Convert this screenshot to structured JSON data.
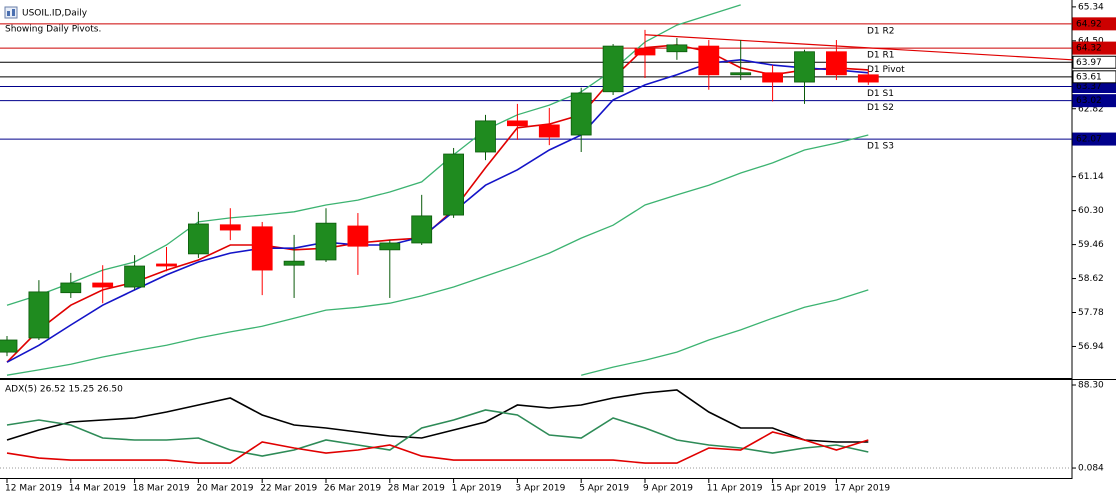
{
  "header": {
    "symbol": "USOIL.ID,Daily",
    "note": "Showing Daily Pivots."
  },
  "chart_data": [
    {
      "type": "candlestick",
      "categories": [
        "12 Mar 2019",
        null,
        "14 Mar 2019",
        null,
        "18 Mar 2019",
        null,
        "20 Mar 2019",
        null,
        "22 Mar 2019",
        null,
        "26 Mar 2019",
        null,
        "28 Mar 2019",
        null,
        "1 Apr 2019",
        null,
        "3 Apr 2019",
        null,
        "5 Apr 2019",
        null,
        "9 Apr 2019",
        null,
        "11 Apr 2019",
        null,
        "15 Apr 2019",
        null,
        "17 Apr 2019",
        null
      ],
      "open": [
        56.8,
        57.15,
        58.27,
        58.51,
        58.41,
        58.98,
        59.23,
        59.95,
        59.9,
        58.95,
        59.08,
        59.92,
        59.33,
        59.5,
        60.19,
        61.75,
        62.52,
        62.42,
        62.17,
        63.24,
        64.3,
        64.23,
        64.37,
        63.66,
        63.71,
        63.48,
        64.23,
        63.66
      ],
      "high": [
        57.2,
        58.58,
        58.76,
        58.95,
        59.2,
        59.4,
        60.27,
        60.36,
        60.02,
        59.7,
        60.36,
        60.24,
        59.57,
        60.69,
        61.85,
        62.67,
        62.94,
        62.84,
        63.34,
        64.42,
        64.77,
        64.57,
        64.52,
        64.52,
        63.9,
        64.28,
        64.52,
        63.78
      ],
      "low": [
        56.7,
        57.1,
        58.14,
        58.01,
        58.34,
        58.8,
        59.13,
        59.57,
        58.21,
        58.14,
        59.03,
        58.71,
        58.14,
        59.45,
        60.12,
        61.55,
        62.05,
        61.92,
        61.75,
        63.16,
        63.58,
        64.03,
        63.29,
        63.53,
        63.0,
        62.94,
        63.53,
        63.41
      ],
      "close": [
        57.1,
        58.29,
        58.51,
        58.41,
        58.93,
        58.93,
        59.97,
        59.82,
        58.83,
        59.05,
        59.99,
        59.42,
        59.5,
        60.17,
        61.7,
        62.52,
        62.4,
        62.12,
        63.21,
        64.37,
        64.15,
        64.4,
        63.66,
        63.71,
        63.48,
        64.23,
        63.66,
        63.48
      ],
      "up_color": "#1f8b1f",
      "down_color": "#ff0000",
      "series": [
        {
          "color": "#e00000",
          "values": [
            56.55,
            57.35,
            57.96,
            58.34,
            58.53,
            58.83,
            59.08,
            59.45,
            59.45,
            59.33,
            59.37,
            59.5,
            59.57,
            59.62,
            60.32,
            61.36,
            62.35,
            62.44,
            62.67,
            63.58,
            64.33,
            64.4,
            64.23,
            63.83,
            63.66,
            63.78,
            63.83,
            63.78
          ]
        },
        {
          "color": "#1414c8",
          "values": [
            56.55,
            56.97,
            57.47,
            57.96,
            58.34,
            58.71,
            59.03,
            59.25,
            59.37,
            59.37,
            59.52,
            59.45,
            59.45,
            59.65,
            60.27,
            60.93,
            61.31,
            61.8,
            62.17,
            63.04,
            63.41,
            63.66,
            63.95,
            64.03,
            63.9,
            63.83,
            63.78,
            63.71
          ]
        },
        {
          "color": "#3cb371",
          "values": [
            57.96,
            58.21,
            58.51,
            58.83,
            59.03,
            59.45,
            60.02,
            60.12,
            60.19,
            60.27,
            60.44,
            60.56,
            60.76,
            61.01,
            61.68,
            62.3,
            62.67,
            62.91,
            63.24,
            63.78,
            64.47,
            64.89,
            65.14,
            65.39,
            null,
            null,
            null,
            null
          ]
        },
        {
          "color": "#3cb371",
          "values": [
            56.23,
            56.36,
            56.5,
            56.68,
            56.83,
            56.97,
            57.15,
            57.3,
            57.44,
            57.64,
            57.84,
            57.91,
            58.01,
            58.19,
            58.41,
            58.68,
            58.95,
            59.25,
            59.62,
            59.94,
            60.44,
            60.69,
            60.93,
            61.23,
            61.48,
            61.8,
            61.97,
            62.17
          ]
        },
        {
          "color": "#3cb371",
          "values": [
            null,
            null,
            null,
            null,
            null,
            null,
            null,
            null,
            null,
            null,
            null,
            null,
            null,
            null,
            null,
            null,
            null,
            null,
            56.23,
            56.43,
            56.6,
            56.8,
            57.1,
            57.35,
            57.64,
            57.91,
            58.09,
            58.34
          ]
        }
      ],
      "pivots": [
        {
          "name": "D1 R2",
          "value": 64.92,
          "color": "#cc0000"
        },
        {
          "name": "D1 R1",
          "value": 64.32,
          "color": "#cc0000"
        },
        {
          "name": "D1 Pivot",
          "value": 63.97,
          "color": "#000000"
        },
        {
          "name": "D1 S1",
          "value": 63.37,
          "color": "#00008b"
        },
        {
          "name": "D1 S2",
          "value": 63.02,
          "color": "#00008b"
        },
        {
          "name": "D1 S3",
          "value": 62.07,
          "color": "#00008b"
        }
      ],
      "current_price": 63.61,
      "trendline": {
        "x": [
          20,
          33.4
        ],
        "values": [
          64.65,
          64.03
        ],
        "color": "#e00000"
      },
      "ylim": [
        56.16,
        65.51
      ],
      "yticks": [
        65.34,
        {
          "value": 64.5,
          "label": "64.50"
        },
        62.82,
        61.14,
        {
          "value": 60.3,
          "label": "60.30"
        },
        59.46,
        58.62,
        57.78,
        56.94
      ]
    },
    {
      "type": "line",
      "title": "ADX(5) 26.52 15.25 26.50",
      "series": [
        {
          "color": "#000000",
          "values": [
            29.85,
            40.48,
            48.98,
            51.11,
            53.23,
            59.61,
            67.05,
            74.48,
            56.42,
            45.79,
            42.6,
            38.35,
            34.1,
            31.98,
            40.48,
            48.98,
            67.05,
            63.86,
            67.05,
            74.48,
            79.8,
            82.99,
            59.61,
            42.6,
            42.6,
            29.85,
            27.73,
            27.73
          ]
        },
        {
          "color": "#2e8b57",
          "values": [
            45.79,
            51.11,
            45.79,
            31.98,
            29.85,
            29.85,
            31.98,
            19.23,
            12.85,
            19.23,
            29.85,
            24.54,
            19.23,
            42.6,
            51.11,
            61.73,
            56.42,
            35.17,
            31.98,
            53.23,
            42.6,
            29.85,
            24.54,
            21.35,
            15.91,
            21.35,
            24.54,
            17.1
          ]
        },
        {
          "color": "#e00000",
          "values": [
            15.91,
            10.6,
            8.47,
            8.47,
            8.47,
            8.47,
            5.28,
            5.28,
            27.73,
            21.35,
            15.91,
            19.23,
            24.54,
            12.72,
            8.47,
            8.47,
            8.47,
            8.47,
            8.47,
            8.47,
            5.28,
            5.28,
            21.35,
            19.23,
            38.35,
            29.85,
            19.23,
            29.85
          ]
        }
      ],
      "ylim": [
        -10.5,
        93.6
      ],
      "yticks": [
        {
          "value": 88.3,
          "label": "88.30"
        },
        0.084
      ]
    }
  ]
}
